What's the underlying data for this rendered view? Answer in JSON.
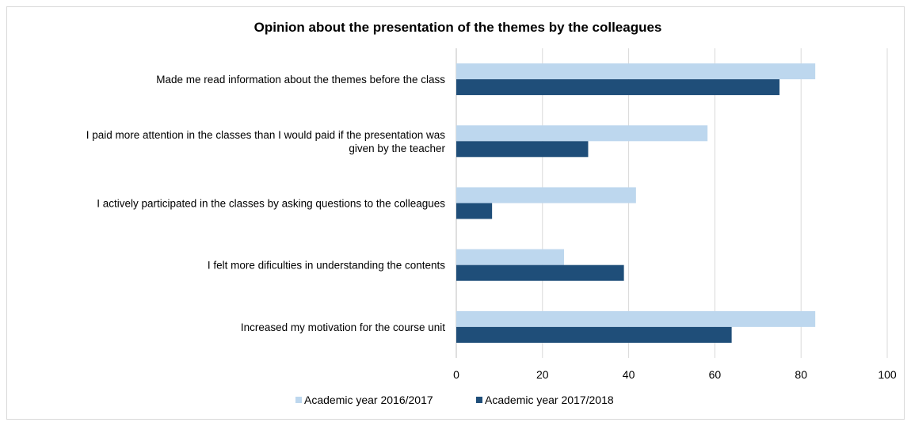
{
  "chart_data": {
    "type": "bar",
    "orientation": "horizontal",
    "title": "Opinion about the presentation of the themes by the colleagues",
    "categories": [
      [
        "Made me read information about the themes before the class"
      ],
      [
        "I paid more attention in the classes than I would paid if the presentation was",
        "given by the teacher"
      ],
      [
        "I actively participated in the classes by asking questions to the colleagues"
      ],
      [
        "I felt more dificulties in understanding the contents"
      ],
      [
        "Increased my motivation for the course unit"
      ]
    ],
    "series": [
      {
        "name": "Academic year 2016/2017",
        "color": "#bdd7ee",
        "values": [
          83.3,
          58.3,
          41.7,
          25.0,
          83.3
        ]
      },
      {
        "name": "Academic year 2017/2018",
        "color": "#1f4e79",
        "values": [
          75.0,
          30.6,
          8.3,
          38.9,
          63.9
        ]
      }
    ],
    "xlim": [
      0,
      100
    ],
    "xticks": [
      "0",
      "20",
      "40",
      "60",
      "80",
      "100"
    ],
    "grid": true,
    "legend": "bottom"
  }
}
